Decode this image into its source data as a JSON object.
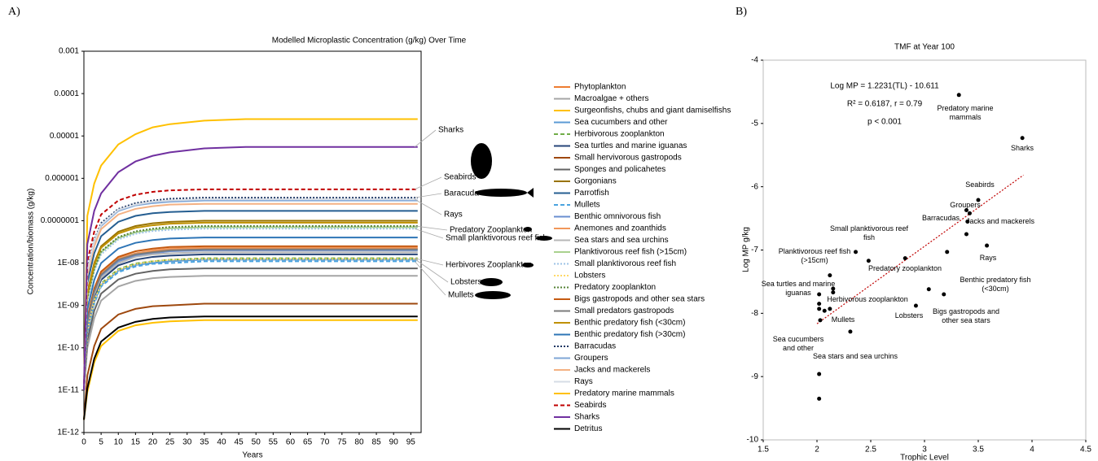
{
  "chart_data": [
    {
      "type": "line",
      "panel_label": "A)",
      "title": "Modelled Microplastic Concentration (g/kg) Over Time",
      "xlabel": "Years",
      "ylabel": "Concentration/biomass (g/kg)",
      "log": true,
      "xlim": [
        0,
        98
      ],
      "ylim": [
        1e-12,
        0.001
      ],
      "xticks": [
        0,
        5,
        10,
        15,
        20,
        25,
        30,
        35,
        40,
        45,
        50,
        55,
        60,
        65,
        70,
        75,
        80,
        85,
        90,
        95
      ],
      "yticks": [
        0.001,
        0.0001,
        1e-05,
        1e-06,
        {
          "value": 1e-07,
          "label": "0.0000001"
        },
        {
          "value": 1e-08,
          "label": "1E-08"
        },
        {
          "value": 1e-09,
          "label": "1E-09"
        },
        {
          "value": 1e-10,
          "label": "1E-10"
        },
        {
          "value": 1e-11,
          "label": "1E-11"
        },
        {
          "value": 1e-12,
          "label": "1E-12"
        }
      ],
      "x": [
        0,
        1,
        3,
        5,
        10,
        15,
        20,
        25,
        35,
        47,
        97
      ],
      "series": [
        {
          "name": "Phytoplankton",
          "color": "#ed7d31",
          "dash": "solid",
          "values": [
            1e-11,
            4.4e-10,
            2.2e-09,
            5.5e-09,
            1.2e-08,
            1.7e-08,
            1.9e-08,
            2.1e-08,
            2.2e-08,
            2.2e-08,
            2.2e-08
          ]
        },
        {
          "name": "Macroalgae + others",
          "color": "#a5a5a5",
          "dash": "solid",
          "values": [
            1e-11,
            1e-10,
            5e-10,
            1.3e-09,
            2.8e-09,
            3.8e-09,
            4.4e-09,
            4.7e-09,
            5e-09,
            5e-09,
            5e-09
          ]
        },
        {
          "name": "Surgeonfishs, chubs and giant damiselfishs",
          "color": "#ffc000",
          "dash": "solid",
          "values": [
            1e-11,
            1.3e-07,
            7.5e-07,
            2e-06,
            6.3e-06,
            1.1e-05,
            1.6e-05,
            1.9e-05,
            2.3e-05,
            2.5e-05,
            2.5e-05
          ]
        },
        {
          "name": "Sea cucumbers and other",
          "color": "#5b9bd5",
          "dash": "solid",
          "values": [
            1e-11,
            2.4e-10,
            1.2e-09,
            3e-09,
            6.6e-09,
            9e-09,
            1e-08,
            1.1e-08,
            1.2e-08,
            1.2e-08,
            1.2e-08
          ]
        },
        {
          "name": "Herbivorous zooplankton",
          "color": "#70ad47",
          "dash": "dashed",
          "values": [
            1e-11,
            2.6e-10,
            1.3e-09,
            3.3e-09,
            7.2e-09,
            9.8e-09,
            1.1e-08,
            1.2e-08,
            1.3e-08,
            1.3e-08,
            1.3e-08
          ]
        },
        {
          "name": "Sea turtles and marine iguanas",
          "color": "#264478",
          "dash": "solid",
          "values": [
            1e-11,
            3.2e-10,
            1.6e-09,
            4e-09,
            8.8e-09,
            1.2e-08,
            1.4e-08,
            1.5e-08,
            1.6e-08,
            1.6e-08,
            1.6e-08
          ]
        },
        {
          "name": "Small hervivorous gastropods",
          "color": "#9e480e",
          "dash": "solid",
          "values": [
            2e-12,
            2.2e-11,
            1.1e-10,
            2.8e-10,
            6.1e-10,
            8.3e-10,
            9.6e-10,
            1e-09,
            1.1e-09,
            1.1e-09,
            1.1e-09
          ]
        },
        {
          "name": "Sponges and policahetes",
          "color": "#636363",
          "dash": "solid",
          "values": [
            1e-11,
            1.5e-10,
            7.5e-10,
            1.9e-09,
            4.1e-09,
            5.6e-09,
            6.5e-09,
            7.1e-09,
            7.5e-09,
            7.5e-09,
            7.5e-09
          ]
        },
        {
          "name": "Gorgonians",
          "color": "#997300",
          "dash": "solid",
          "values": [
            1e-11,
            2e-09,
            1e-08,
            2.5e-08,
            5.5e-08,
            7.5e-08,
            8.7e-08,
            9.4e-08,
            1e-07,
            1e-07,
            1e-07
          ]
        },
        {
          "name": "Parrotfish",
          "color": "#255e91",
          "dash": "solid",
          "values": [
            1e-11,
            3.4e-09,
            1.7e-08,
            4.3e-08,
            9.4e-08,
            1.3e-07,
            1.5e-07,
            1.6e-07,
            1.7e-07,
            1.7e-07,
            1.7e-07
          ]
        },
        {
          "name": "Mullets",
          "color": "#4aa3df",
          "dash": "dashed",
          "values": [
            1e-11,
            2.2e-10,
            1.1e-09,
            2.8e-09,
            6.1e-09,
            8.3e-09,
            9.6e-09,
            1e-08,
            1.1e-08,
            1.1e-08,
            1.1e-08
          ]
        },
        {
          "name": "Benthic omnivorous fish",
          "color": "#698ed0",
          "dash": "solid",
          "values": [
            1e-11,
            4e-10,
            2e-09,
            5e-09,
            1.1e-08,
            1.5e-08,
            1.7e-08,
            1.9e-08,
            2e-08,
            2e-08,
            2e-08
          ]
        },
        {
          "name": "Anemones and zoanthids",
          "color": "#f1975a",
          "dash": "solid",
          "values": [
            1e-11,
            4.6e-10,
            2.3e-09,
            5.8e-09,
            1.3e-08,
            1.7e-08,
            2e-08,
            2.2e-08,
            2.3e-08,
            2.3e-08,
            2.3e-08
          ]
        },
        {
          "name": "Sea stars and sea urchins",
          "color": "#b7b7b7",
          "dash": "solid",
          "values": [
            1e-11,
            3.6e-10,
            1.8e-09,
            4.5e-09,
            9.9e-09,
            1.4e-08,
            1.6e-08,
            1.7e-08,
            1.8e-08,
            1.8e-08,
            1.8e-08
          ]
        },
        {
          "name": "Planktivorous reef fish (>15cm)",
          "color": "#a9d18e",
          "dash": "solid",
          "values": [
            1e-11,
            1.4e-09,
            7e-09,
            1.8e-08,
            3.9e-08,
            5.3e-08,
            6.1e-08,
            6.6e-08,
            7e-08,
            7e-08,
            7e-08
          ]
        },
        {
          "name": "Small planktivorous reef fish",
          "color": "#9dc3e6",
          "dash": "dotted",
          "values": [
            1e-11,
            1.3e-09,
            6.5e-09,
            1.6e-08,
            3.6e-08,
            4.9e-08,
            5.7e-08,
            6.1e-08,
            6.5e-08,
            6.5e-08,
            6.5e-08
          ]
        },
        {
          "name": "Lobsters",
          "color": "#ffd966",
          "dash": "dotted",
          "values": [
            1e-11,
            2.5e-10,
            1.3e-09,
            3.1e-09,
            6.9e-09,
            9.4e-09,
            1.1e-08,
            1.2e-08,
            1.25e-08,
            1.25e-08,
            1.25e-08
          ]
        },
        {
          "name": "Predatory zooplankton",
          "color": "#548235",
          "dash": "dotted",
          "values": [
            1e-11,
            1.5e-09,
            7.5e-09,
            1.9e-08,
            4.1e-08,
            5.6e-08,
            6.5e-08,
            7.1e-08,
            7.5e-08,
            7.5e-08,
            7.5e-08
          ]
        },
        {
          "name": "Bigs gastropods and other sea stars",
          "color": "#c55a11",
          "dash": "solid",
          "values": [
            1e-11,
            5e-10,
            2.5e-09,
            6.3e-09,
            1.4e-08,
            1.9e-08,
            2.2e-08,
            2.4e-08,
            2.5e-08,
            2.5e-08,
            2.5e-08
          ]
        },
        {
          "name": "Small predators gastropods",
          "color": "#7b7b7b",
          "dash": "solid",
          "values": [
            1e-11,
            4.2e-10,
            2.1e-09,
            5.3e-09,
            1.2e-08,
            1.6e-08,
            1.8e-08,
            2e-08,
            2.1e-08,
            2.1e-08,
            2.1e-08
          ]
        },
        {
          "name": "Benthic predatory fish (<30cm)",
          "color": "#bf9000",
          "dash": "solid",
          "values": [
            1e-11,
            1.8e-09,
            9e-09,
            2.3e-08,
            5e-08,
            6.8e-08,
            7.8e-08,
            8.5e-08,
            9e-08,
            9e-08,
            9e-08
          ]
        },
        {
          "name": "Benthic predatory fish (>30cm)",
          "color": "#2e75b6",
          "dash": "solid",
          "values": [
            1e-11,
            8e-10,
            4e-09,
            1e-08,
            2.2e-08,
            3e-08,
            3.5e-08,
            3.8e-08,
            4e-08,
            4e-08,
            4e-08
          ]
        },
        {
          "name": "Barracudas",
          "color": "#1f3864",
          "dash": "dotted",
          "values": [
            1e-11,
            7e-09,
            3.5e-08,
            8.8e-08,
            1.9e-07,
            2.6e-07,
            3e-07,
            3.3e-07,
            3.5e-07,
            3.5e-07,
            3.5e-07
          ]
        },
        {
          "name": "Groupers",
          "color": "#7fa6d6",
          "dash": "solid",
          "values": [
            1e-11,
            6e-09,
            3e-08,
            7.5e-08,
            1.7e-07,
            2.3e-07,
            2.6e-07,
            2.8e-07,
            3e-07,
            3e-07,
            3e-07
          ]
        },
        {
          "name": "Jacks and mackerels",
          "color": "#f4b183",
          "dash": "solid",
          "values": [
            1e-11,
            5e-09,
            2.5e-08,
            6.3e-08,
            1.4e-07,
            1.9e-07,
            2.2e-07,
            2.4e-07,
            2.5e-07,
            2.5e-07,
            2.5e-07
          ]
        },
        {
          "name": "Rays",
          "color": "#d6dce5",
          "dash": "solid",
          "values": [
            1e-11,
            6.4e-09,
            3.2e-08,
            8e-08,
            1.8e-07,
            2.4e-07,
            2.8e-07,
            3e-07,
            3.2e-07,
            3.2e-07,
            3.2e-07
          ]
        },
        {
          "name": "Predatory marine mammals",
          "color": "#ffc000",
          "dash": "solid",
          "values": [
            2e-12,
            9e-12,
            4.5e-11,
            1.1e-10,
            2.5e-10,
            3.4e-10,
            3.9e-10,
            4.2e-10,
            4.5e-10,
            4.5e-10,
            4.5e-10
          ]
        },
        {
          "name": "Seabirds",
          "color": "#c00000",
          "dash": "dashed",
          "values": [
            1e-11,
            1.1e-08,
            5.5e-08,
            1.4e-07,
            3e-07,
            4.1e-07,
            4.8e-07,
            5.2e-07,
            5.5e-07,
            5.5e-07,
            5.5e-07
          ]
        },
        {
          "name": "Sharks",
          "color": "#7030a0",
          "dash": "solid",
          "values": [
            1e-11,
            2.8e-08,
            1.7e-07,
            4.4e-07,
            1.4e-06,
            2.5e-06,
            3.4e-06,
            4.1e-06,
            5.1e-06,
            5.5e-06,
            5.5e-06
          ]
        },
        {
          "name": "Detritus",
          "color": "#000000",
          "dash": "solid",
          "values": [
            2e-12,
            1.1e-11,
            5.5e-11,
            1.4e-10,
            3e-10,
            4.1e-10,
            4.8e-10,
            5.2e-10,
            5.5e-10,
            5.5e-10,
            5.5e-10
          ]
        }
      ],
      "annotations": [
        "Sharks",
        "Seabirds",
        "Baracuda",
        "Rays",
        "Predatory Zooplankton",
        "Small planktivorous reef fish",
        "Herbivores Zooplankton",
        "Lobsters",
        "Mullets"
      ]
    },
    {
      "type": "scatter",
      "panel_label": "B)",
      "title": "TMF at Year 100",
      "xlabel": "Trophic Level",
      "ylabel": "Log MP g/kg",
      "xlim": [
        1.5,
        4.5
      ],
      "ylim": [
        -10,
        -4
      ],
      "xticks": [
        1.5,
        2,
        2.5,
        3,
        3.5,
        4,
        4.5
      ],
      "yticks": [
        -10,
        -9,
        -8,
        -7,
        -6,
        -5,
        -4
      ],
      "x": [
        3.32,
        3.91,
        3.5,
        3.39,
        3.42,
        3.4,
        3.39,
        3.58,
        3.21,
        2.48,
        2.36,
        2.82,
        3.18,
        3.04,
        2.92,
        2.12,
        2.15,
        2.15,
        2.02,
        2.12,
        2.07,
        2.02,
        2.02,
        2.03,
        2.31,
        2.02,
        2.02
      ],
      "y": [
        -4.55,
        -5.23,
        -6.21,
        -6.37,
        -6.42,
        -6.55,
        -6.75,
        -6.93,
        -7.03,
        -7.17,
        -7.03,
        -7.13,
        -7.7,
        -7.62,
        -7.88,
        -7.4,
        -7.61,
        -7.67,
        -7.7,
        -7.93,
        -7.96,
        -7.85,
        -7.93,
        -8.11,
        -8.29,
        -8.96,
        -9.35
      ],
      "point_labels": [
        "Predatory marine mammals",
        "Sharks",
        "Seabirds",
        "Groupers",
        null,
        "Jacks and mackerels",
        "Barracudas",
        "Rays",
        "Benthic predatory fish (<30cm)",
        "Small planktivorous reef fish",
        "Planktivorous reef fish (>15cm)",
        "Predatory zooplankton",
        "Bigs gastropods and other sea stars",
        null,
        "Lobsters",
        "Sea turtles and marine iguanas",
        null,
        "Herbivorous zooplankton",
        null,
        "Mullets",
        null,
        null,
        null,
        "Sea cucumbers and other",
        "Sea stars and sea urchins",
        null,
        null
      ],
      "trendline": {
        "color": "#c00000",
        "x": [
          2,
          3.92
        ],
        "y": [
          -8.165,
          -5.816
        ]
      },
      "annotation": [
        "Log MP = 1.2231(TL) - 10.611",
        "R² = 0.6187, r = 0.79",
        "p < 0.001"
      ]
    }
  ]
}
